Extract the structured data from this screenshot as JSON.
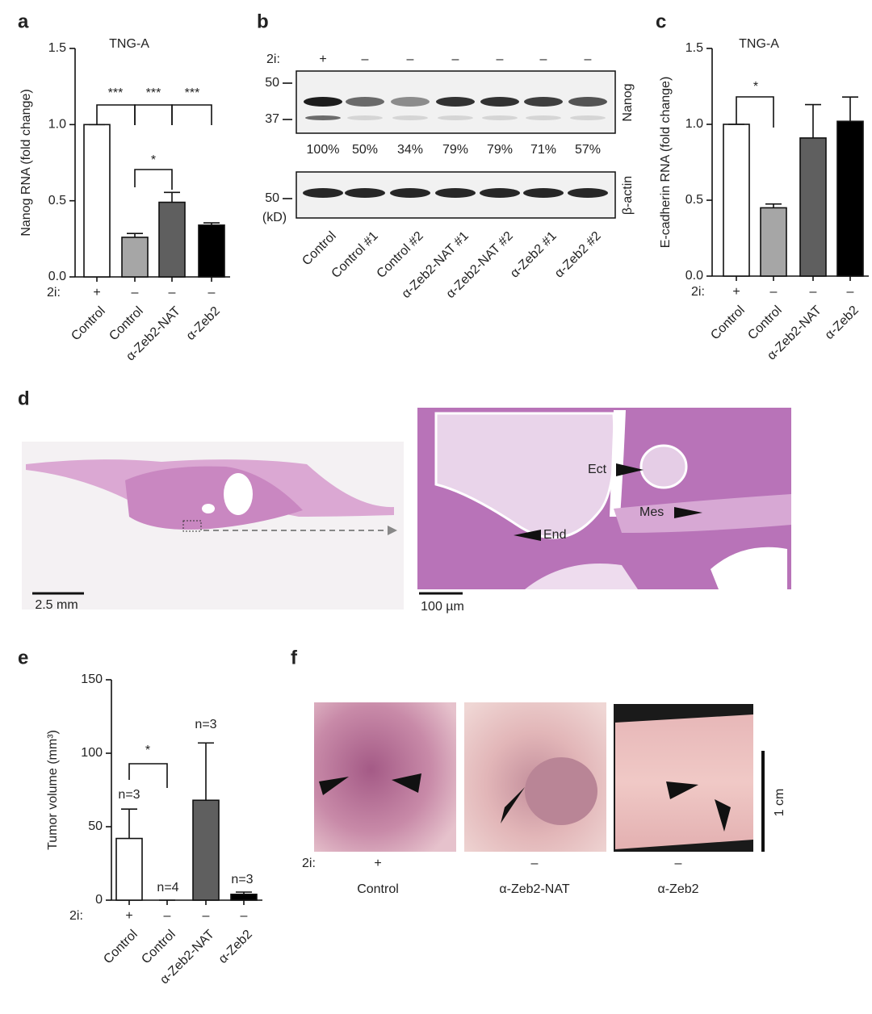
{
  "chart_data": [
    {
      "type": "bar",
      "panel": "a",
      "title": "TNG-A",
      "ylabel": "Nanog RNA (fold change)",
      "categories": [
        "Control",
        "Control",
        "α-Zeb2-NAT",
        "α-Zeb2"
      ],
      "values": [
        1.0,
        0.26,
        0.49,
        0.34
      ],
      "errors": [
        0,
        0.025,
        0.065,
        0.015
      ],
      "colors": [
        "#ffffff",
        "#a6a6a6",
        "#5f5f5f",
        "#000000"
      ],
      "ylim": [
        0,
        1.5
      ],
      "yticks": [
        {
          "value": 0,
          "label": "0.0"
        },
        0.5,
        {
          "value": 1,
          "label": "1.0"
        },
        1.5
      ],
      "conditions_label": "2i:",
      "conditions": [
        "+",
        "–",
        "–",
        "–"
      ],
      "annotations": [
        "***",
        "***",
        "***",
        "*"
      ]
    },
    {
      "type": "bar",
      "panel": "c",
      "title": "TNG-A",
      "ylabel": "E-cadherin RNA (fold change)",
      "categories": [
        "Control",
        "Control",
        "α-Zeb2-NAT",
        "α-Zeb2"
      ],
      "values": [
        1.0,
        0.45,
        0.91,
        1.02
      ],
      "errors": [
        0,
        0.025,
        0.22,
        0.16
      ],
      "colors": [
        "#ffffff",
        "#a6a6a6",
        "#5f5f5f",
        "#000000"
      ],
      "ylim": [
        0,
        1.5
      ],
      "yticks": [
        {
          "value": 0,
          "label": "0.0"
        },
        0.5,
        {
          "value": 1,
          "label": "1.0"
        },
        1.5
      ],
      "conditions_label": "2i:",
      "conditions": [
        "+",
        "–",
        "–",
        "–"
      ],
      "annotations": [
        "*"
      ]
    },
    {
      "type": "bar",
      "panel": "e",
      "ylabel": "Tumor volume (mm³)",
      "categories": [
        "Control",
        "Control",
        "α-Zeb2-NAT",
        "α-Zeb2"
      ],
      "values": [
        42,
        0,
        68,
        4
      ],
      "errors": [
        20,
        0,
        39,
        1.5
      ],
      "colors": [
        "#ffffff",
        "#a6a6a6",
        "#5f5f5f",
        "#000000"
      ],
      "ylim": [
        0,
        150
      ],
      "yticks": [
        0,
        50,
        100,
        150
      ],
      "conditions_label": "2i:",
      "conditions": [
        "+",
        "–",
        "–",
        "–"
      ],
      "annotations": [
        "*"
      ],
      "n_labels": [
        "n=3",
        "n=4",
        "n=3",
        "n=3"
      ]
    }
  ],
  "panel_b": {
    "panel": "b",
    "conditions_label": "2i:",
    "conditions": [
      "+",
      "–",
      "–",
      "–",
      "–",
      "–",
      "–"
    ],
    "markers_top": [
      "50",
      "37"
    ],
    "marker_bottom": "50",
    "unit": "(kD)",
    "blot_top": "Nanog",
    "blot_bottom": "β-actin",
    "percentages": [
      "100%",
      "50%",
      "34%",
      "79%",
      "79%",
      "71%",
      "57%"
    ],
    "lanes": [
      "Control",
      "Control #1",
      "Control #2",
      "α-Zeb2-NAT #1",
      "α-Zeb2-NAT #2",
      "α-Zeb2 #1",
      "α-Zeb2 #2"
    ]
  },
  "panel_d": {
    "panel": "d",
    "scale_left": "2.5 mm",
    "scale_right": "100 µm",
    "labels": [
      "Ect",
      "Mes",
      "End"
    ]
  },
  "panel_f": {
    "panel": "f",
    "conditions_label": "2i:",
    "conditions": [
      "+",
      "–",
      "–"
    ],
    "groups": [
      "Control",
      "α-Zeb2-NAT",
      "α-Zeb2"
    ],
    "scale": "1 cm"
  }
}
